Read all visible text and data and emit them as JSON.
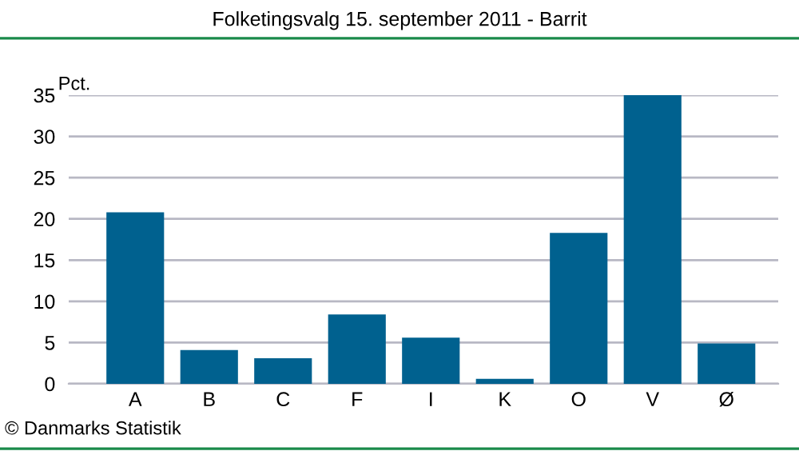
{
  "chart_data": {
    "type": "bar",
    "title": "Folketingsvalg 15. september 2011 - Barrit",
    "ylabel": "Pct.",
    "categories": [
      "A",
      "B",
      "C",
      "F",
      "I",
      "K",
      "O",
      "V",
      "Ø"
    ],
    "values": [
      20.8,
      4.1,
      3.1,
      8.4,
      5.6,
      0.6,
      18.3,
      35.0,
      4.9
    ],
    "color": "#00618f",
    "ylim": [
      0,
      35
    ],
    "yticks": [
      0,
      5,
      10,
      15,
      20,
      25,
      30,
      35
    ],
    "grid": "y",
    "annotations": [
      "© Danmarks Statistik"
    ]
  }
}
